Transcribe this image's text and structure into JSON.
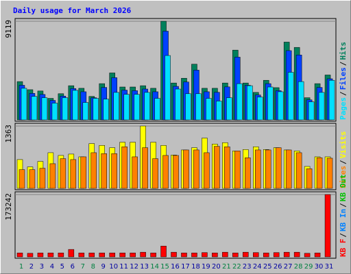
{
  "chart_data": [
    {
      "type": "bar",
      "title": "Daily usage for March 2026",
      "series": [
        {
          "name": "Hits",
          "color": "#00805c",
          "values": [
            3540,
            2790,
            2670,
            1990,
            2420,
            3160,
            2920,
            2170,
            3350,
            4340,
            3040,
            3040,
            3160,
            2920,
            9119,
            3410,
            3850,
            5150,
            2920,
            2920,
            3410,
            6450,
            3410,
            2540,
            3660,
            2980,
            7190,
            6700,
            2050,
            3350,
            4150
          ]
        },
        {
          "name": "Files",
          "color": "#0040ff",
          "values": [
            3200,
            2450,
            2350,
            1800,
            2200,
            2900,
            2600,
            2050,
            3000,
            3900,
            2750,
            2700,
            2850,
            2600,
            8200,
            3100,
            3500,
            4600,
            2600,
            2550,
            3050,
            5800,
            3200,
            2300,
            3350,
            2700,
            6400,
            6000,
            1850,
            3000,
            3800
          ]
        },
        {
          "name": "Pages",
          "color": "#00e0ff",
          "values": [
            2920,
            2170,
            2050,
            1550,
            2050,
            2730,
            1610,
            1990,
            1920,
            2540,
            2360,
            2360,
            2540,
            1990,
            5950,
            2850,
            2420,
            2420,
            1990,
            1740,
            2050,
            3350,
            3160,
            2110,
            3040,
            2600,
            4400,
            3540,
            1670,
            2540,
            3660
          ]
        }
      ],
      "ylim": [
        0,
        9119
      ],
      "yticks": [
        9119
      ],
      "legend_separator": "/"
    },
    {
      "type": "bar",
      "series": [
        {
          "name": "Visits",
          "color": "#ffff00",
          "values": [
            630,
            470,
            590,
            780,
            720,
            750,
            690,
            980,
            940,
            890,
            1010,
            1010,
            1363,
            1010,
            940,
            730,
            840,
            890,
            1100,
            970,
            1000,
            820,
            850,
            910,
            850,
            890,
            840,
            820,
            480,
            690,
            690
          ]
        },
        {
          "name": "Sites",
          "color": "#ff8000",
          "values": [
            410,
            410,
            440,
            540,
            650,
            630,
            690,
            780,
            760,
            760,
            910,
            690,
            890,
            650,
            720,
            720,
            840,
            840,
            780,
            920,
            910,
            820,
            670,
            840,
            840,
            890,
            840,
            780,
            430,
            670,
            660
          ]
        }
      ],
      "ylim": [
        0,
        1363
      ],
      "yticks": [
        1363
      ],
      "legend_separator": "/"
    },
    {
      "type": "bar",
      "series": [
        {
          "name": "KB F",
          "color": "#ff0000",
          "values": [
            11000,
            10000,
            11000,
            11000,
            11000,
            20700,
            11000,
            11000,
            11000,
            11000,
            11000,
            11000,
            13000,
            11000,
            30100,
            13000,
            11000,
            11000,
            12000,
            11000,
            13000,
            11000,
            13000,
            12000,
            11000,
            12000,
            13000,
            13000,
            10000,
            11000,
            173242
          ]
        }
      ],
      "legend_extra": [
        {
          "name": "KB In",
          "color": "#0080ff"
        },
        {
          "name": "KB Out",
          "color": "#00c000"
        }
      ],
      "ylim": [
        0,
        173242
      ],
      "yticks": [
        173242
      ],
      "legend_separator": "/",
      "categories": [
        "1",
        "2",
        "3",
        "4",
        "5",
        "6",
        "7",
        "8",
        "9",
        "10",
        "11",
        "12",
        "13",
        "14",
        "15",
        "16",
        "17",
        "18",
        "19",
        "20",
        "21",
        "22",
        "23",
        "24",
        "25",
        "26",
        "27",
        "28",
        "29",
        "30",
        "31"
      ],
      "category_colors": [
        "#008040",
        "#0000a0",
        "#0000a0",
        "#0000a0",
        "#0000a0",
        "#0000a0",
        "#008040",
        "#008040",
        "#0000a0",
        "#0000a0",
        "#0000a0",
        "#0000a0",
        "#0000a0",
        "#008040",
        "#008040",
        "#0000a0",
        "#0000a0",
        "#0000a0",
        "#0000a0",
        "#0000a0",
        "#008040",
        "#008040",
        "#0000a0",
        "#0000a0",
        "#0000a0",
        "#0000a0",
        "#0000a0",
        "#008040",
        "#008040",
        "#0000a0",
        "#0000a0"
      ]
    }
  ]
}
